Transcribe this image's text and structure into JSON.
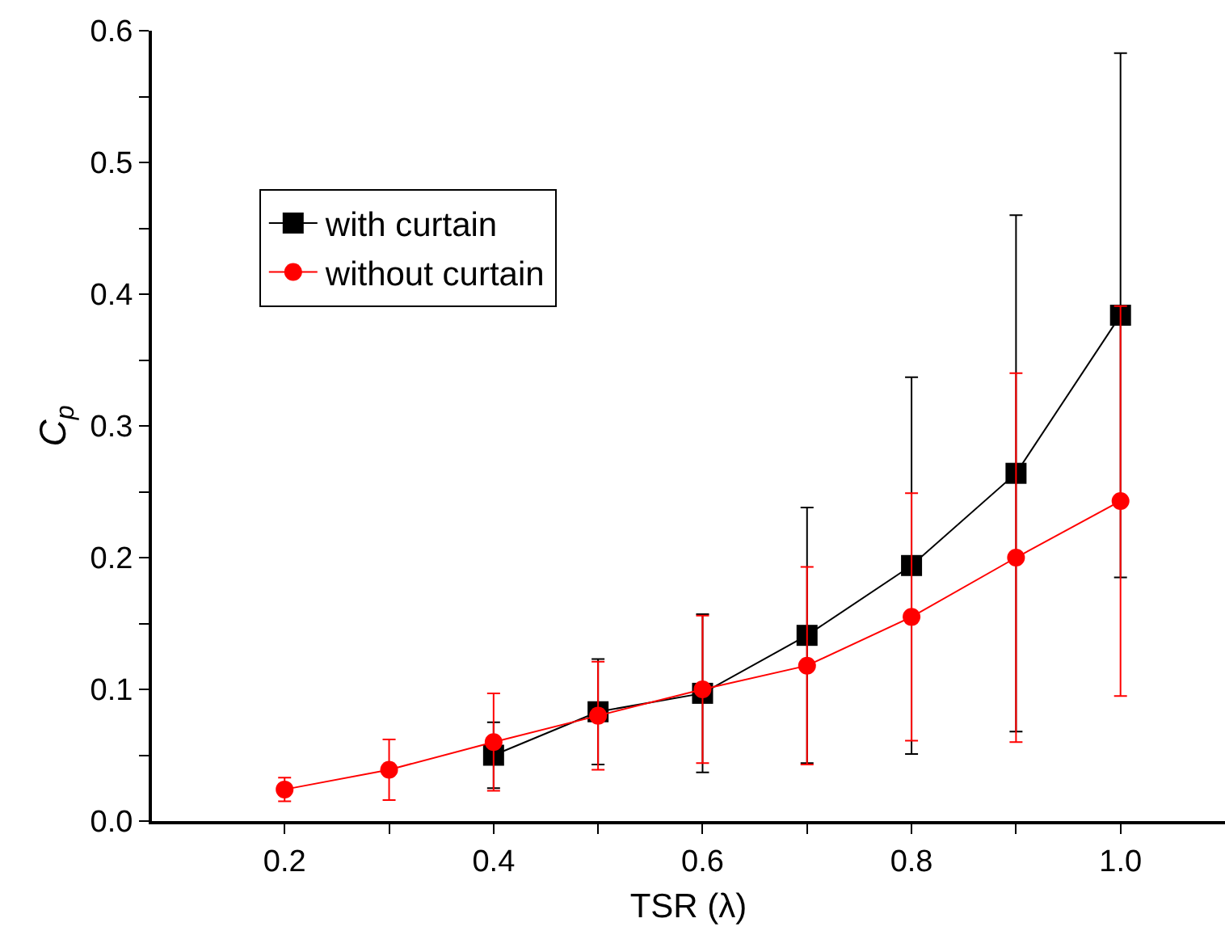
{
  "chart_data": {
    "type": "line",
    "xlabel": "TSR (λ)",
    "ylabel": "C$_{p}$",
    "xlim": [
      0.073,
      1.1
    ],
    "ylim": [
      0,
      0.6
    ],
    "xticks": [
      0.2,
      {
        "value": 0.3,
        "label": null
      },
      0.4,
      {
        "value": 0.5,
        "label": null
      },
      0.6,
      {
        "value": 0.7,
        "label": null
      },
      0.8,
      {
        "value": 0.9,
        "label": null
      },
      {
        "value": 1,
        "label": "1.0"
      }
    ],
    "yticks": [
      {
        "value": 0,
        "label": "0.0"
      },
      {
        "value": 0.05,
        "label": null
      },
      0.1,
      {
        "value": 0.15,
        "label": null
      },
      0.2,
      {
        "value": 0.25,
        "label": null
      },
      0.3,
      {
        "value": 0.35,
        "label": null
      },
      0.4,
      {
        "value": 0.45,
        "label": null
      },
      0.5,
      {
        "value": 0.55,
        "label": null
      },
      0.6
    ],
    "series": [
      {
        "name": "with curtain",
        "color": "#000000",
        "marker": "square",
        "x": [
          0.4,
          0.5,
          0.6,
          0.7,
          0.8,
          0.9,
          1.0
        ],
        "values": [
          0.05,
          0.083,
          0.097,
          0.141,
          0.194,
          0.264,
          0.384
        ],
        "errors": [
          0.025,
          0.04,
          0.06,
          0.097,
          0.143,
          0.196,
          0.199
        ]
      },
      {
        "name": "without curtain",
        "color": "#ff0000",
        "marker": "circle",
        "x": [
          0.2,
          0.3,
          0.4,
          0.5,
          0.6,
          0.7,
          0.8,
          0.9,
          1.0
        ],
        "values": [
          0.024,
          0.039,
          0.06,
          0.08,
          0.1,
          0.118,
          0.155,
          0.2,
          0.243
        ],
        "errors": [
          0.009,
          0.023,
          0.037,
          0.041,
          0.056,
          0.075,
          0.094,
          0.14,
          0.148
        ]
      }
    ],
    "grid": false,
    "legend": "top left",
    "line_style": "solid"
  }
}
